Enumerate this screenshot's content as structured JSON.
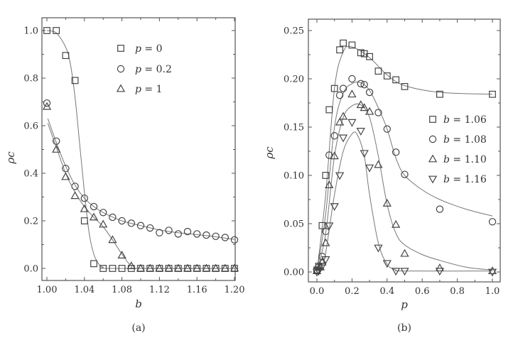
{
  "chart_data": [
    {
      "type": "scatter",
      "caption": "(a)",
      "xlabel": "b",
      "ylabel": "ρc",
      "xlim": [
        0.995,
        1.2
      ],
      "ylim": [
        -0.05,
        1.05
      ],
      "xticks": [
        "1.00",
        "1.04",
        "1.08",
        "1.12",
        "1.16",
        "1.20"
      ],
      "xtick_values": [
        1.0,
        1.04,
        1.08,
        1.12,
        1.16,
        1.2
      ],
      "yticks": [
        "0.0",
        "0.2",
        "0.4",
        "0.6",
        "0.8",
        "1.0"
      ],
      "ytick_values": [
        0,
        0.2,
        0.4,
        0.6,
        0.8,
        1.0
      ],
      "legend_position": "top-right",
      "series": [
        {
          "name": "p = 0",
          "marker": "square",
          "x": [
            1.0,
            1.01,
            1.02,
            1.03,
            1.04,
            1.05,
            1.06,
            1.07,
            1.08,
            1.09,
            1.1,
            1.11,
            1.12,
            1.13,
            1.14,
            1.15,
            1.16,
            1.17,
            1.18,
            1.19,
            1.2
          ],
          "y": [
            1.0,
            1.0,
            0.895,
            0.79,
            0.2,
            0.02,
            0,
            0,
            0,
            0,
            0,
            0,
            0,
            0,
            0,
            0,
            0,
            0,
            0,
            0,
            0
          ],
          "fit_x": [
            1.0,
            1.01,
            1.02,
            1.025,
            1.03,
            1.035,
            1.04,
            1.045,
            1.05,
            1.055,
            1.06,
            1.07,
            1.2
          ],
          "fit_y": [
            1.0,
            0.99,
            0.93,
            0.86,
            0.72,
            0.52,
            0.32,
            0.15,
            0.06,
            0.02,
            0.005,
            0,
            0
          ]
        },
        {
          "name": "p = 0.2",
          "marker": "circle",
          "x": [
            1.0,
            1.01,
            1.02,
            1.03,
            1.04,
            1.05,
            1.06,
            1.07,
            1.08,
            1.09,
            1.1,
            1.11,
            1.12,
            1.13,
            1.14,
            1.15,
            1.16,
            1.17,
            1.18,
            1.19,
            1.2
          ],
          "y": [
            0.695,
            0.535,
            0.42,
            0.345,
            0.295,
            0.26,
            0.235,
            0.215,
            0.2,
            0.19,
            0.18,
            0.17,
            0.15,
            0.16,
            0.145,
            0.155,
            0.145,
            0.14,
            0.135,
            0.13,
            0.12
          ],
          "fit_x": [
            1.001,
            1.01,
            1.02,
            1.03,
            1.04,
            1.05,
            1.06,
            1.08,
            1.1,
            1.12,
            1.14,
            1.16,
            1.18,
            1.2
          ],
          "fit_y": [
            0.63,
            0.53,
            0.43,
            0.35,
            0.295,
            0.26,
            0.235,
            0.2,
            0.18,
            0.162,
            0.15,
            0.142,
            0.133,
            0.122
          ]
        },
        {
          "name": "p = 1",
          "marker": "triangle-up",
          "x": [
            1.0,
            1.01,
            1.02,
            1.03,
            1.04,
            1.05,
            1.06,
            1.07,
            1.08,
            1.09,
            1.1,
            1.11,
            1.12,
            1.13,
            1.14,
            1.15,
            1.16,
            1.17,
            1.18,
            1.19,
            1.2
          ],
          "y": [
            0.68,
            0.5,
            0.385,
            0.305,
            0.25,
            0.215,
            0.185,
            0.12,
            0.055,
            0.01,
            0,
            0,
            0,
            0,
            0,
            0,
            0,
            0,
            0,
            0,
            0
          ],
          "fit_x": [
            1.001,
            1.01,
            1.02,
            1.03,
            1.04,
            1.05,
            1.06,
            1.07,
            1.08,
            1.09,
            1.1,
            1.2
          ],
          "fit_y": [
            0.61,
            0.51,
            0.4,
            0.32,
            0.26,
            0.215,
            0.175,
            0.12,
            0.06,
            0.01,
            0,
            0
          ]
        }
      ]
    },
    {
      "type": "scatter",
      "caption": "(b)",
      "xlabel": "p",
      "ylabel": "ρc",
      "xlim": [
        -0.05,
        1.05
      ],
      "ylim": [
        -0.01,
        0.262
      ],
      "xticks": [
        "0.0",
        "0.2",
        "0.4",
        "0.6",
        "0.8",
        "1.0"
      ],
      "xtick_values": [
        0,
        0.2,
        0.4,
        0.6,
        0.8,
        1.0
      ],
      "yticks": [
        "0.00",
        "0.05",
        "0.10",
        "0.15",
        "0.20",
        "0.25"
      ],
      "ytick_values": [
        0,
        0.05,
        0.1,
        0.15,
        0.2,
        0.25
      ],
      "legend_position": "center-right",
      "series": [
        {
          "name": "b = 1.06",
          "marker": "square",
          "x": [
            0,
            0.01,
            0.03,
            0.05,
            0.07,
            0.1,
            0.13,
            0.15,
            0.2,
            0.25,
            0.27,
            0.3,
            0.35,
            0.4,
            0.45,
            0.5,
            0.7,
            1.0
          ],
          "y": [
            0.002,
            0.006,
            0.048,
            0.1,
            0.168,
            0.19,
            0.23,
            0.237,
            0.235,
            0.227,
            0.226,
            0.223,
            0.208,
            0.203,
            0.199,
            0.192,
            0.184,
            0.184
          ],
          "fit_x": [
            0,
            0.05,
            0.1,
            0.15,
            0.2,
            0.3,
            0.4,
            0.5,
            0.7,
            1.0
          ],
          "fit_y": [
            0,
            0.08,
            0.19,
            0.228,
            0.233,
            0.222,
            0.204,
            0.193,
            0.186,
            0.184
          ]
        },
        {
          "name": "b = 1.08",
          "marker": "circle",
          "x": [
            0,
            0.01,
            0.03,
            0.05,
            0.07,
            0.1,
            0.13,
            0.15,
            0.2,
            0.25,
            0.27,
            0.3,
            0.35,
            0.4,
            0.45,
            0.5,
            0.7,
            1.0
          ],
          "y": [
            0.002,
            0.005,
            0.016,
            0.042,
            0.121,
            0.141,
            0.183,
            0.19,
            0.2,
            0.195,
            0.194,
            0.186,
            0.165,
            0.148,
            0.124,
            0.101,
            0.065,
            0.052
          ],
          "fit_x": [
            0,
            0.05,
            0.1,
            0.15,
            0.2,
            0.25,
            0.3,
            0.35,
            0.4,
            0.45,
            0.5,
            0.6,
            0.7,
            0.85,
            1.0
          ],
          "fit_y": [
            0,
            0.06,
            0.15,
            0.185,
            0.195,
            0.196,
            0.188,
            0.17,
            0.148,
            0.118,
            0.1,
            0.085,
            0.075,
            0.065,
            0.058
          ]
        },
        {
          "name": "b = 1.10",
          "marker": "triangle-up",
          "x": [
            0,
            0.02,
            0.03,
            0.05,
            0.07,
            0.1,
            0.13,
            0.15,
            0.2,
            0.25,
            0.27,
            0.3,
            0.35,
            0.4,
            0.45,
            0.5,
            0.7,
            1.0
          ],
          "y": [
            0.001,
            0.005,
            0.01,
            0.03,
            0.09,
            0.12,
            0.155,
            0.161,
            0.184,
            0.173,
            0.17,
            0.166,
            0.111,
            0.071,
            0.049,
            0.019,
            0.004,
            0.001
          ],
          "fit_x": [
            0,
            0.05,
            0.1,
            0.15,
            0.2,
            0.25,
            0.3,
            0.35,
            0.4,
            0.45,
            0.5,
            0.6,
            0.7,
            0.85,
            1.0
          ],
          "fit_y": [
            0,
            0.04,
            0.12,
            0.16,
            0.172,
            0.173,
            0.16,
            0.12,
            0.07,
            0.04,
            0.028,
            0.018,
            0.012,
            0.005,
            0.002
          ]
        },
        {
          "name": "b = 1.16",
          "marker": "triangle-down",
          "x": [
            0,
            0.01,
            0.03,
            0.05,
            0.07,
            0.1,
            0.13,
            0.15,
            0.2,
            0.25,
            0.27,
            0.3,
            0.35,
            0.4,
            0.45,
            0.5,
            0.7,
            1.0
          ],
          "y": [
            0,
            0.001,
            0.006,
            0.013,
            0.048,
            0.068,
            0.1,
            0.139,
            0.155,
            0.146,
            0.123,
            0.108,
            0.025,
            0.009,
            0.001,
            0.001,
            0.001,
            0
          ],
          "fit_x": [
            0.02,
            0.05,
            0.1,
            0.15,
            0.2,
            0.23,
            0.27,
            0.3,
            0.35,
            0.4,
            0.45,
            0.5,
            1.0
          ],
          "fit_y": [
            0,
            0.02,
            0.08,
            0.125,
            0.143,
            0.142,
            0.12,
            0.08,
            0.03,
            0.008,
            0.002,
            0.001,
            0.001
          ]
        }
      ]
    }
  ]
}
